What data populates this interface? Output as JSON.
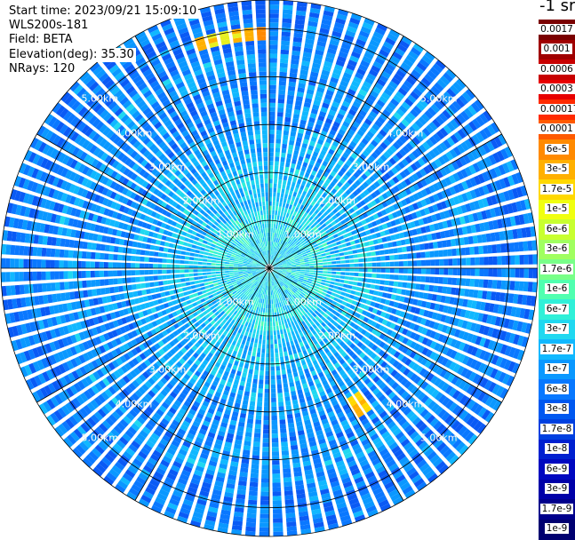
{
  "header": {
    "start_time": "Start time: 2023/09/21 15:09:10",
    "instrument": "WLS200s-181",
    "field": "Field: BETA",
    "elevation": "Elevation(deg): 35.30",
    "nrays": "NRays: 120"
  },
  "colorbar": {
    "unit_label": "-1 sr",
    "levels": [
      "0.0017",
      "0.001",
      "0.0006",
      "0.0003",
      "0.00017",
      "0.0001",
      "6e-5",
      "3e-5",
      "1.7e-5",
      "1e-5",
      "6e-6",
      "3e-6",
      "1.7e-6",
      "1e-6",
      "6e-7",
      "3e-7",
      "1.7e-7",
      "1e-7",
      "6e-8",
      "3e-8",
      "1.7e-8",
      "1e-8",
      "6e-9",
      "3e-9",
      "1.7e-9",
      "1e-9"
    ],
    "colors": [
      "#7a0000",
      "#a00000",
      "#c80000",
      "#e80000",
      "#ff2a00",
      "#ff5a00",
      "#ff8a00",
      "#ffb000",
      "#ffd800",
      "#f0ff10",
      "#c8ff30",
      "#a0ff60",
      "#78ff88",
      "#50ffb0",
      "#30f0d8",
      "#20d8f0",
      "#10b8ff",
      "#0a98ff",
      "#0878ff",
      "#0058f0",
      "#0040e0",
      "#0020d0",
      "#0008c0",
      "#0000a8",
      "#00008c",
      "#000070"
    ]
  },
  "ppi": {
    "ring_labels": [
      "1.00km",
      "2.00km",
      "3.00km",
      "4.00km",
      "5.00km"
    ],
    "max_range_km": 5.6,
    "n_rays": 120
  }
}
